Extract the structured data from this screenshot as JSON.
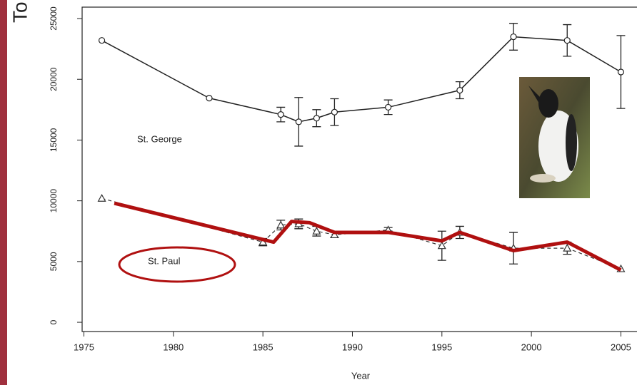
{
  "chart_data": {
    "type": "line",
    "y_label": "To",
    "x_label": "Year",
    "xlim": [
      1974.9,
      2005.9
    ],
    "ylim": [
      -760,
      25940
    ],
    "xticks": [
      1975,
      1980,
      1985,
      1990,
      1995,
      2000,
      2005
    ],
    "yticks": [
      0,
      5000,
      10000,
      15000,
      20000,
      25000
    ],
    "annotations": [
      "St. George",
      "St. Paul"
    ],
    "series": [
      {
        "color": "#222222",
        "marker": "circle",
        "dash": false,
        "width": 1.5,
        "x": [
          1976,
          1982,
          1986,
          1987,
          1988,
          1989,
          1992,
          1996,
          1999,
          2002,
          2005
        ],
        "values": [
          23200,
          18450,
          17100,
          16500,
          16800,
          17300,
          17700,
          19100,
          23500,
          23200,
          20600
        ],
        "errors": [
          0,
          0,
          600,
          2000,
          700,
          1100,
          600,
          700,
          1100,
          1300,
          3000
        ]
      },
      {
        "color": "#333333",
        "marker": "triangle",
        "dash": true,
        "width": 1.2,
        "x": [
          1976,
          1985,
          1986,
          1987,
          1988,
          1989,
          1992,
          1995,
          1996,
          1999,
          2002,
          2005
        ],
        "values": [
          10200,
          6600,
          8000,
          8100,
          7500,
          7200,
          7600,
          6300,
          7400,
          6100,
          6100,
          4400
        ],
        "errors": [
          0,
          300,
          400,
          400,
          400,
          200,
          200,
          1200,
          500,
          1300,
          500,
          0
        ]
      },
      {
        "color": "#b01010",
        "marker": "none",
        "dash": false,
        "width": 5,
        "x": [
          1976.7,
          1985.6,
          1986.6,
          1987.6,
          1989,
          1992,
          1995,
          1996,
          1999,
          2002,
          2005
        ],
        "values": [
          9800,
          6600,
          8300,
          8200,
          7400,
          7400,
          6700,
          7400,
          5900,
          6600,
          4300
        ]
      }
    ]
  }
}
